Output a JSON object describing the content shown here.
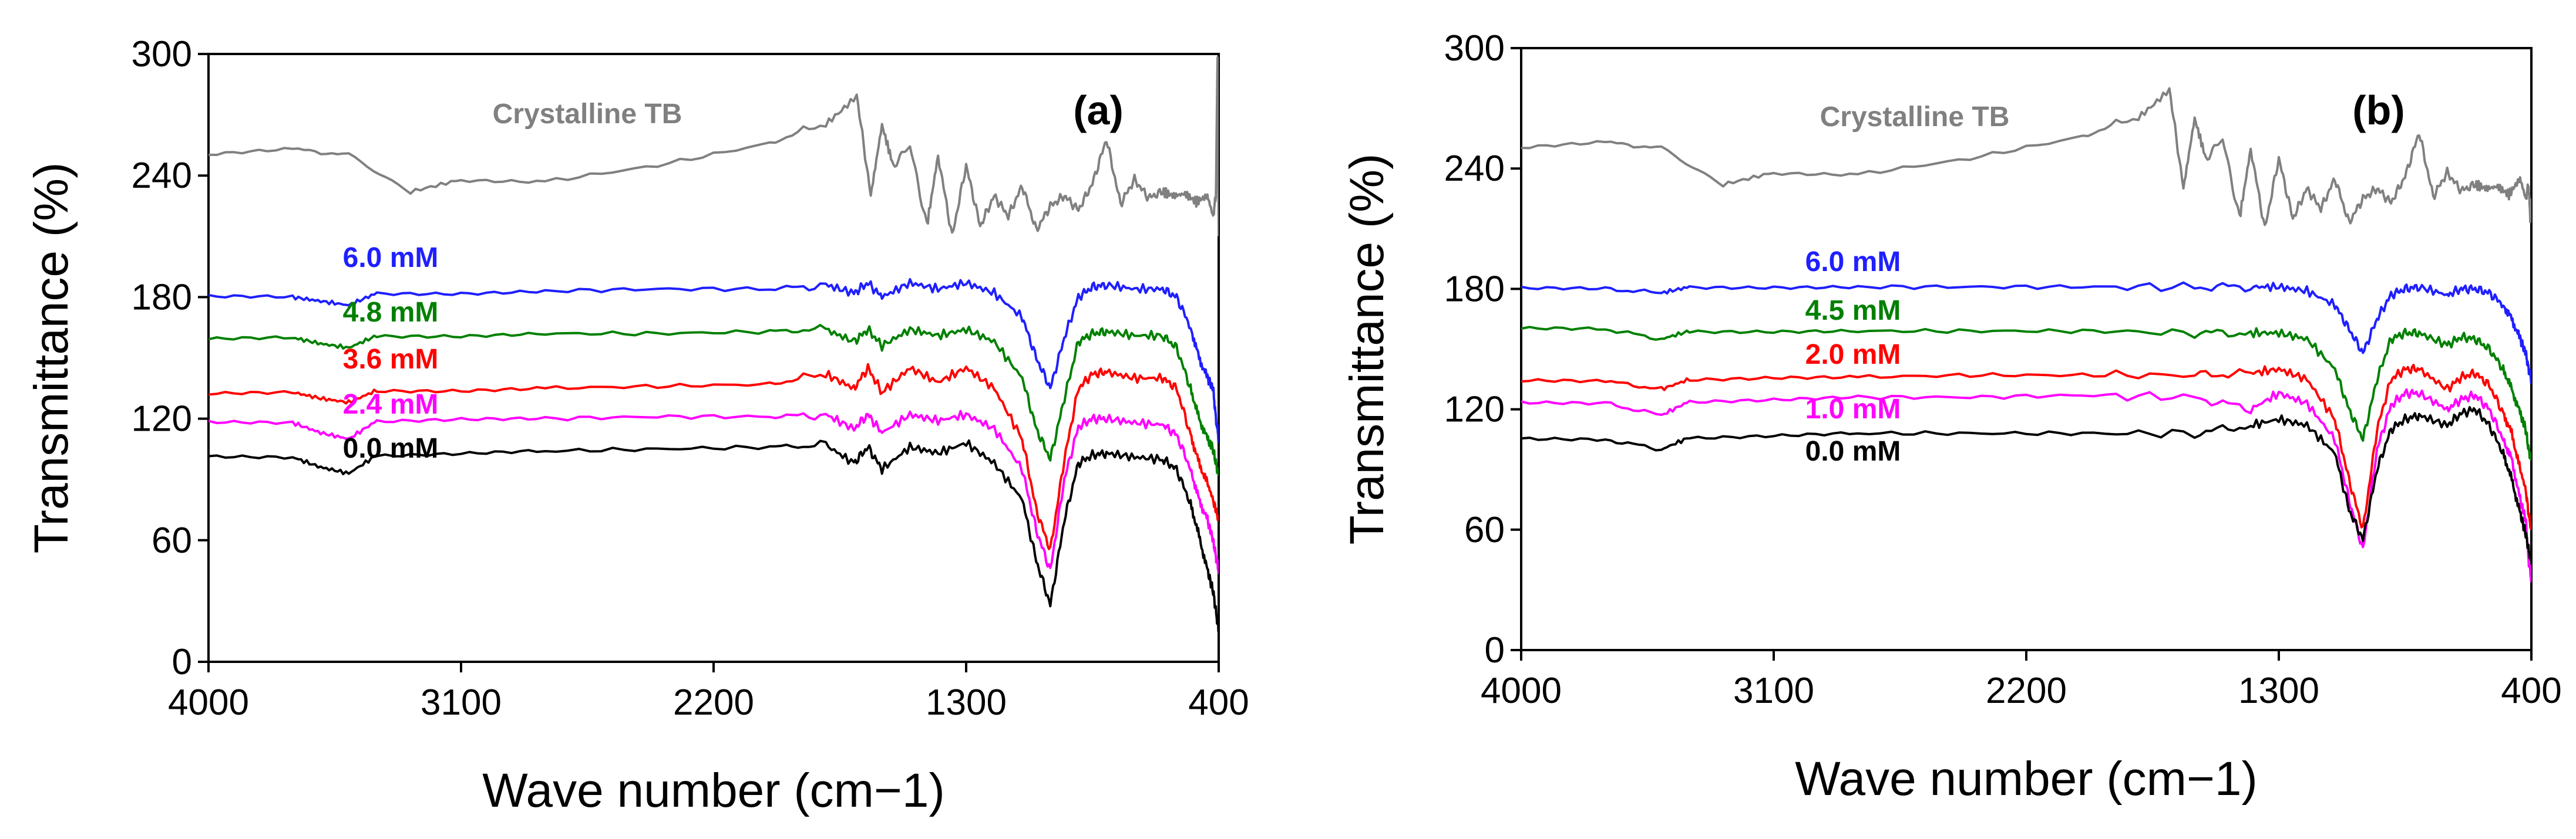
{
  "chart_data": [
    {
      "type": "line",
      "panel_label": "(a)",
      "xlabel": "Wave number (cm−1)",
      "ylabel": "Transmittance (%)",
      "xlim": [
        4000,
        400
      ],
      "ylim": [
        0,
        300
      ],
      "xticks": [
        "4000",
        "3100",
        "2200",
        "1300",
        "400"
      ],
      "yticks": [
        "0",
        "60",
        "120",
        "180",
        "240",
        "300"
      ],
      "series": [
        {
          "name": "Crystalline TB",
          "color": "#808080",
          "x": [
            4000,
            3700,
            3500,
            3280,
            3100,
            2800,
            2400,
            2000,
            1800,
            1690,
            1640,
            1600,
            1560,
            1500,
            1440,
            1400,
            1350,
            1300,
            1250,
            1200,
            1150,
            1100,
            1050,
            1000,
            950,
            900,
            850,
            800,
            750,
            700,
            650,
            600,
            560,
            520,
            480,
            440,
            420,
            410,
            404,
            400
          ],
          "y": [
            250,
            253,
            250,
            232,
            238,
            237,
            245,
            256,
            266,
            280,
            230,
            265,
            245,
            255,
            215,
            250,
            210,
            245,
            215,
            230,
            220,
            235,
            213,
            225,
            230,
            223,
            236,
            258,
            226,
            238,
            229,
            232,
            230,
            231,
            227,
            230,
            220,
            230,
            300,
            210
          ]
        },
        {
          "name": "6.0 mM",
          "color": "#1f1fff",
          "x": [
            4000,
            3700,
            3600,
            3500,
            3400,
            3100,
            2800,
            2400,
            2000,
            1800,
            1700,
            1650,
            1600,
            1500,
            1400,
            1300,
            1200,
            1100,
            1050,
            1000,
            950,
            900,
            850,
            800,
            700,
            600,
            550,
            500,
            470,
            440,
            420,
            410,
            400
          ],
          "y": [
            180,
            180,
            178,
            176,
            182,
            182,
            183,
            184,
            184,
            186,
            182,
            187,
            180,
            187,
            184,
            187,
            182,
            170,
            150,
            135,
            160,
            180,
            185,
            186,
            184,
            184,
            180,
            165,
            150,
            140,
            135,
            120,
            110
          ]
        },
        {
          "name": "4.8 mM",
          "color": "#008000",
          "x": [
            4000,
            3700,
            3600,
            3500,
            3400,
            3100,
            2800,
            2400,
            2000,
            1800,
            1700,
            1650,
            1600,
            1500,
            1400,
            1300,
            1200,
            1100,
            1050,
            1000,
            950,
            900,
            850,
            800,
            700,
            600,
            550,
            500,
            470,
            440,
            420,
            410,
            400
          ],
          "y": [
            159,
            160,
            157,
            155,
            161,
            161,
            162,
            162,
            163,
            164,
            158,
            164,
            156,
            164,
            161,
            164,
            158,
            140,
            115,
            100,
            130,
            158,
            162,
            163,
            161,
            161,
            155,
            135,
            120,
            110,
            105,
            98,
            92
          ]
        },
        {
          "name": "3.6 mM",
          "color": "#ff0000",
          "x": [
            4000,
            3700,
            3600,
            3500,
            3400,
            3100,
            2800,
            2400,
            2000,
            1800,
            1700,
            1650,
            1600,
            1500,
            1400,
            1300,
            1200,
            1100,
            1050,
            1000,
            950,
            900,
            850,
            800,
            700,
            600,
            550,
            500,
            470,
            440,
            420,
            410,
            400
          ],
          "y": [
            132,
            133,
            130,
            128,
            134,
            134,
            135,
            136,
            137,
            142,
            135,
            145,
            133,
            145,
            138,
            145,
            135,
            110,
            75,
            55,
            100,
            135,
            142,
            143,
            140,
            140,
            135,
            112,
            98,
            88,
            80,
            75,
            70
          ]
        },
        {
          "name": "2.4 mM",
          "color": "#ff00ff",
          "x": [
            4000,
            3700,
            3600,
            3500,
            3400,
            3100,
            2800,
            2400,
            2000,
            1800,
            1700,
            1650,
            1600,
            1500,
            1400,
            1300,
            1200,
            1100,
            1050,
            1000,
            950,
            900,
            850,
            800,
            700,
            600,
            550,
            500,
            470,
            440,
            420,
            410,
            400
          ],
          "y": [
            118,
            118,
            113,
            110,
            119,
            120,
            120,
            121,
            121,
            122,
            115,
            122,
            113,
            122,
            119,
            122,
            115,
            95,
            65,
            45,
            90,
            116,
            120,
            120,
            118,
            117,
            112,
            95,
            80,
            70,
            60,
            52,
            45
          ]
        },
        {
          "name": "0.0 mM",
          "color": "#000000",
          "x": [
            4000,
            3700,
            3600,
            3500,
            3400,
            3100,
            2800,
            2400,
            2000,
            1800,
            1700,
            1650,
            1600,
            1500,
            1400,
            1300,
            1200,
            1100,
            1050,
            1000,
            950,
            900,
            850,
            800,
            700,
            600,
            550,
            500,
            470,
            440,
            420,
            410,
            400
          ],
          "y": [
            101,
            101,
            96,
            93,
            102,
            103,
            104,
            105,
            106,
            107,
            98,
            106,
            95,
            106,
            103,
            108,
            98,
            80,
            50,
            28,
            70,
            98,
            102,
            103,
            101,
            100,
            95,
            78,
            62,
            45,
            35,
            25,
            15
          ]
        }
      ]
    },
    {
      "type": "line",
      "panel_label": "(b)",
      "xlabel": "Wave number (cm−1)",
      "ylabel": "Transmittance (%)",
      "xlim": [
        4000,
        400
      ],
      "ylim": [
        0,
        300
      ],
      "xticks": [
        "4000",
        "3100",
        "2200",
        "1300",
        "400"
      ],
      "yticks": [
        "0",
        "60",
        "120",
        "180",
        "240",
        "300"
      ],
      "series": [
        {
          "name": "Crystalline TB",
          "color": "#808080",
          "x": [
            4000,
            3700,
            3500,
            3280,
            3100,
            2800,
            2400,
            2000,
            1800,
            1690,
            1640,
            1600,
            1560,
            1500,
            1440,
            1400,
            1350,
            1300,
            1250,
            1200,
            1150,
            1100,
            1050,
            1000,
            950,
            900,
            850,
            800,
            750,
            700,
            650,
            600,
            560,
            520,
            480,
            440,
            420,
            410,
            404,
            400
          ],
          "y": [
            250,
            253,
            250,
            232,
            238,
            237,
            245,
            256,
            266,
            280,
            230,
            265,
            245,
            255,
            215,
            250,
            210,
            245,
            215,
            230,
            220,
            235,
            213,
            225,
            230,
            223,
            236,
            258,
            226,
            238,
            229,
            232,
            230,
            231,
            227,
            235,
            225,
            232,
            215,
            225
          ]
        },
        {
          "name": "6.0 mM",
          "color": "#1f1fff",
          "x": [
            4000,
            3700,
            3500,
            3400,
            3100,
            2800,
            2400,
            2000,
            1600,
            1400,
            1300,
            1200,
            1100,
            1050,
            1000,
            950,
            900,
            850,
            800,
            700,
            650,
            600,
            550,
            500,
            470,
            440,
            420,
            410,
            400
          ],
          "y": [
            180,
            180,
            178,
            181,
            181,
            181,
            181,
            181,
            181,
            181,
            181,
            179,
            172,
            160,
            148,
            165,
            177,
            180,
            181,
            177,
            180,
            180,
            178,
            172,
            165,
            155,
            148,
            140,
            135
          ]
        },
        {
          "name": "4.5 mM",
          "color": "#008000",
          "x": [
            4000,
            3700,
            3500,
            3400,
            3100,
            2800,
            2400,
            2000,
            1600,
            1400,
            1300,
            1200,
            1100,
            1050,
            1000,
            950,
            900,
            850,
            800,
            700,
            650,
            600,
            550,
            500,
            470,
            440,
            420,
            410,
            400
          ],
          "y": [
            160,
            160,
            155,
            159,
            159,
            159,
            159,
            159,
            158,
            158,
            158,
            155,
            140,
            120,
            105,
            135,
            155,
            158,
            158,
            152,
            156,
            155,
            150,
            140,
            130,
            118,
            110,
            100,
            95
          ]
        },
        {
          "name": "2.0 mM",
          "color": "#ff0000",
          "x": [
            4000,
            3700,
            3500,
            3400,
            3100,
            2800,
            2400,
            2000,
            1600,
            1400,
            1300,
            1200,
            1100,
            1050,
            1000,
            950,
            900,
            850,
            800,
            700,
            650,
            600,
            550,
            500,
            470,
            440,
            420,
            410,
            400
          ],
          "y": [
            134,
            134,
            130,
            135,
            136,
            136,
            137,
            137,
            137,
            138,
            140,
            135,
            115,
            85,
            60,
            110,
            135,
            140,
            140,
            130,
            136,
            138,
            132,
            118,
            108,
            90,
            80,
            68,
            60
          ]
        },
        {
          "name": "1.0 mM",
          "color": "#ff00ff",
          "x": [
            4000,
            3700,
            3500,
            3400,
            3100,
            2800,
            2400,
            2000,
            1600,
            1400,
            1300,
            1200,
            1100,
            1050,
            1000,
            950,
            900,
            850,
            800,
            700,
            650,
            600,
            550,
            500,
            470,
            440,
            420,
            410,
            400
          ],
          "y": [
            123,
            123,
            117,
            124,
            125,
            126,
            126,
            127,
            126,
            120,
            128,
            123,
            105,
            75,
            50,
            100,
            122,
            128,
            128,
            120,
            125,
            127,
            120,
            105,
            95,
            75,
            65,
            45,
            35
          ]
        },
        {
          "name": "0.0 mM",
          "color": "#000000",
          "x": [
            4000,
            3700,
            3500,
            3400,
            3100,
            2800,
            2400,
            2000,
            1600,
            1400,
            1300,
            1200,
            1100,
            1050,
            1000,
            950,
            900,
            850,
            800,
            700,
            650,
            600,
            550,
            500,
            470,
            440,
            420,
            410,
            400
          ],
          "y": [
            105,
            105,
            100,
            106,
            107,
            108,
            108,
            108,
            108,
            112,
            115,
            112,
            98,
            70,
            55,
            90,
            110,
            115,
            117,
            112,
            118,
            120,
            112,
            98,
            85,
            68,
            58,
            50,
            45
          ]
        }
      ]
    }
  ]
}
